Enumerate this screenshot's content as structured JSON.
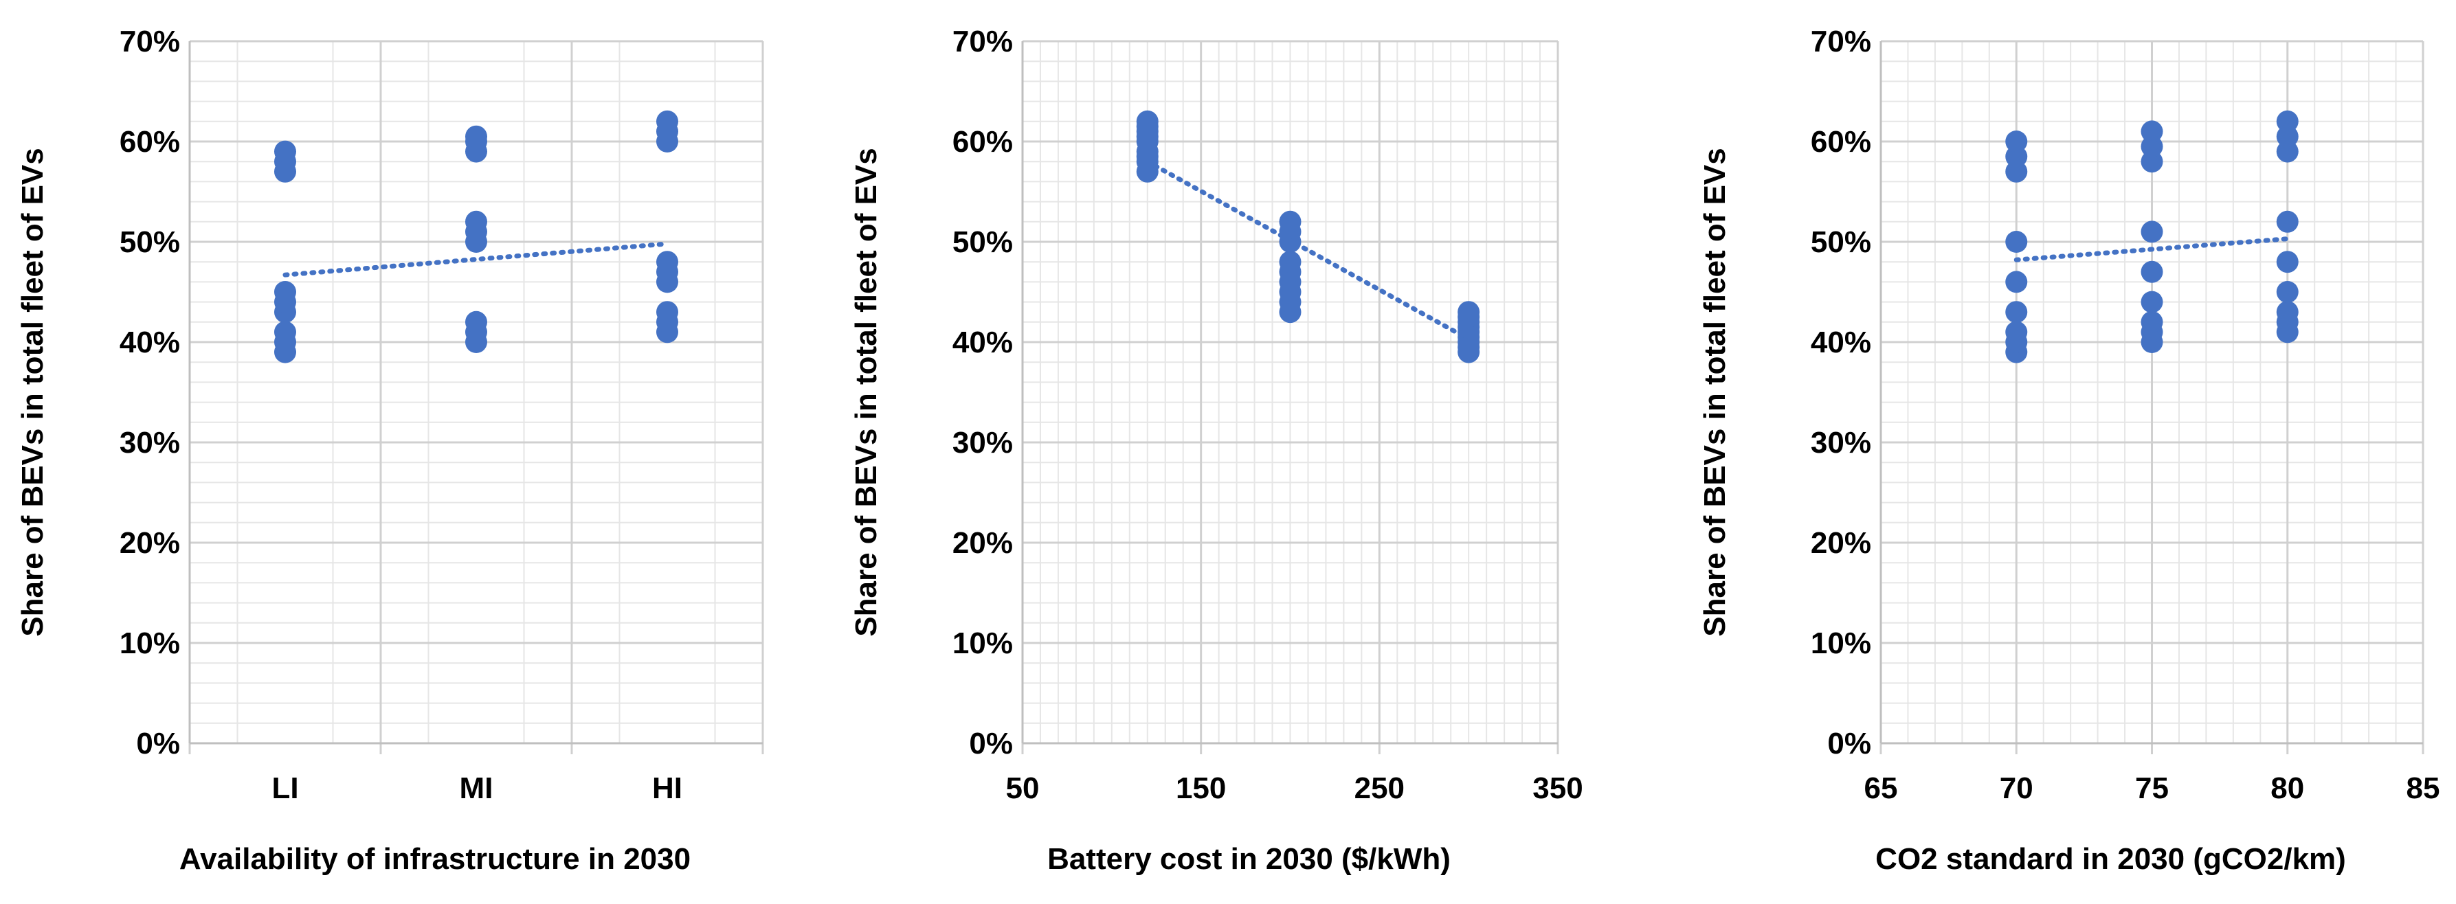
{
  "colors": {
    "marker": "#4472C4",
    "trendline": "#4472C4",
    "grid_major": "#D0D0D0",
    "grid_minor": "#E6E6E6",
    "axis": "#BFBFBF"
  },
  "chart_data": [
    {
      "type": "scatter",
      "x_scale": "category",
      "categories": [
        "LI",
        "MI",
        "HI"
      ],
      "x_tick_labels": [
        "LI",
        "MI",
        "HI"
      ],
      "y_tick_labels": [
        "0%",
        "10%",
        "20%",
        "30%",
        "40%",
        "50%",
        "60%",
        "70%"
      ],
      "ylim": [
        0,
        70
      ],
      "xlabel": "Availability of infrastructure in 2030",
      "ylabel": "Share of BEVs in total fleet of EVs",
      "grid": true,
      "points": [
        {
          "x": "LI",
          "y": 39
        },
        {
          "x": "LI",
          "y": 40
        },
        {
          "x": "LI",
          "y": 41
        },
        {
          "x": "LI",
          "y": 43
        },
        {
          "x": "LI",
          "y": 44
        },
        {
          "x": "LI",
          "y": 45
        },
        {
          "x": "LI",
          "y": 57
        },
        {
          "x": "LI",
          "y": 58
        },
        {
          "x": "LI",
          "y": 59
        },
        {
          "x": "MI",
          "y": 40
        },
        {
          "x": "MI",
          "y": 41
        },
        {
          "x": "MI",
          "y": 42
        },
        {
          "x": "MI",
          "y": 50
        },
        {
          "x": "MI",
          "y": 51
        },
        {
          "x": "MI",
          "y": 52
        },
        {
          "x": "MI",
          "y": 59
        },
        {
          "x": "MI",
          "y": 60
        },
        {
          "x": "MI",
          "y": 60.5
        },
        {
          "x": "HI",
          "y": 41
        },
        {
          "x": "HI",
          "y": 42
        },
        {
          "x": "HI",
          "y": 43
        },
        {
          "x": "HI",
          "y": 46
        },
        {
          "x": "HI",
          "y": 47
        },
        {
          "x": "HI",
          "y": 48
        },
        {
          "x": "HI",
          "y": 60
        },
        {
          "x": "HI",
          "y": 61
        },
        {
          "x": "HI",
          "y": 62
        }
      ],
      "trendline": {
        "x_start": "LI",
        "y_start": 46.7,
        "x_end": "HI",
        "y_end": 49.8
      }
    },
    {
      "type": "scatter",
      "x_scale": "linear",
      "xlim": [
        50,
        350
      ],
      "x_ticks": [
        50,
        150,
        250,
        350
      ],
      "x_minor_step": 10,
      "x_tick_labels": [
        "50",
        "150",
        "250",
        "350"
      ],
      "y_tick_labels": [
        "0%",
        "10%",
        "20%",
        "30%",
        "40%",
        "50%",
        "60%",
        "70%"
      ],
      "ylim": [
        0,
        70
      ],
      "xlabel": "Battery cost in 2030 ($/kWh)",
      "ylabel": "Share of BEVs in total fleet of EVs",
      "grid": true,
      "points": [
        {
          "x": 120,
          "y": 57
        },
        {
          "x": 120,
          "y": 58
        },
        {
          "x": 120,
          "y": 59
        },
        {
          "x": 120,
          "y": 60
        },
        {
          "x": 120,
          "y": 61
        },
        {
          "x": 120,
          "y": 62
        },
        {
          "x": 120,
          "y": 58.5
        },
        {
          "x": 120,
          "y": 60.5
        },
        {
          "x": 120,
          "y": 61.5
        },
        {
          "x": 200,
          "y": 43
        },
        {
          "x": 200,
          "y": 44
        },
        {
          "x": 200,
          "y": 45
        },
        {
          "x": 200,
          "y": 46
        },
        {
          "x": 200,
          "y": 47
        },
        {
          "x": 200,
          "y": 48
        },
        {
          "x": 200,
          "y": 50
        },
        {
          "x": 200,
          "y": 51
        },
        {
          "x": 200,
          "y": 52
        },
        {
          "x": 300,
          "y": 39
        },
        {
          "x": 300,
          "y": 40
        },
        {
          "x": 300,
          "y": 41
        },
        {
          "x": 300,
          "y": 42
        },
        {
          "x": 300,
          "y": 43
        },
        {
          "x": 300,
          "y": 40.5
        },
        {
          "x": 300,
          "y": 41.5
        },
        {
          "x": 300,
          "y": 42.5
        },
        {
          "x": 300,
          "y": 39.5
        }
      ],
      "trendline": {
        "x_start": 120,
        "y_start": 58,
        "x_end": 300,
        "y_end": 40.3
      }
    },
    {
      "type": "scatter",
      "x_scale": "linear",
      "xlim": [
        65,
        85
      ],
      "x_ticks": [
        65,
        70,
        75,
        80,
        85
      ],
      "x_minor_step": 1,
      "x_tick_labels": [
        "65",
        "70",
        "75",
        "80",
        "85"
      ],
      "y_tick_labels": [
        "0%",
        "10%",
        "20%",
        "30%",
        "40%",
        "50%",
        "60%",
        "70%"
      ],
      "ylim": [
        0,
        70
      ],
      "xlabel": "CO2 standard in 2030 (gCO2/km)",
      "ylabel": "Share of BEVs in total fleet of EVs",
      "grid": true,
      "points": [
        {
          "x": 70,
          "y": 39
        },
        {
          "x": 70,
          "y": 40
        },
        {
          "x": 70,
          "y": 41
        },
        {
          "x": 70,
          "y": 43
        },
        {
          "x": 70,
          "y": 46
        },
        {
          "x": 70,
          "y": 50
        },
        {
          "x": 70,
          "y": 57
        },
        {
          "x": 70,
          "y": 58.5
        },
        {
          "x": 70,
          "y": 60
        },
        {
          "x": 75,
          "y": 40
        },
        {
          "x": 75,
          "y": 41
        },
        {
          "x": 75,
          "y": 42
        },
        {
          "x": 75,
          "y": 44
        },
        {
          "x": 75,
          "y": 47
        },
        {
          "x": 75,
          "y": 51
        },
        {
          "x": 75,
          "y": 58
        },
        {
          "x": 75,
          "y": 59.5
        },
        {
          "x": 75,
          "y": 61
        },
        {
          "x": 80,
          "y": 41
        },
        {
          "x": 80,
          "y": 42
        },
        {
          "x": 80,
          "y": 43
        },
        {
          "x": 80,
          "y": 45
        },
        {
          "x": 80,
          "y": 48
        },
        {
          "x": 80,
          "y": 52
        },
        {
          "x": 80,
          "y": 59
        },
        {
          "x": 80,
          "y": 60.5
        },
        {
          "x": 80,
          "y": 62
        }
      ],
      "trendline": {
        "x_start": 70,
        "y_start": 48.2,
        "x_end": 80,
        "y_end": 50.3
      }
    }
  ]
}
